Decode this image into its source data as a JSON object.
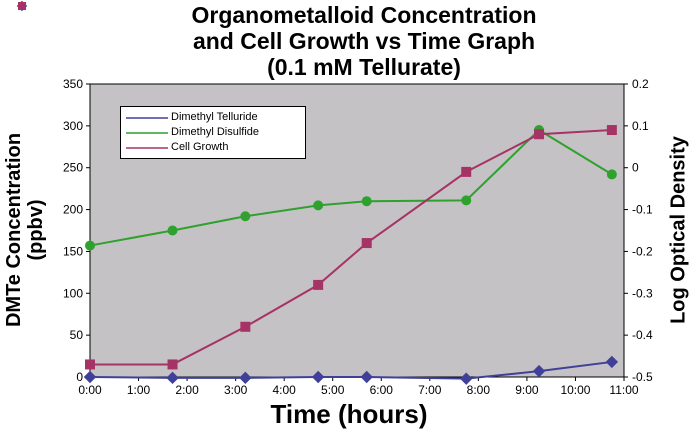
{
  "title": {
    "lines": [
      "Organometalloid Concentration",
      "and Cell Growth vs Time Graph",
      "(0.1 mM Tellurate)"
    ]
  },
  "chart_data": {
    "type": "line",
    "title": "Organometalloid Concentration and Cell Growth vs Time Graph (0.1 mM Tellurate)",
    "x_unit": "hours",
    "x": [
      0,
      1.7,
      3.2,
      4.7,
      5.7,
      7.75,
      9.25,
      10.75
    ],
    "series": [
      {
        "name": "Dimethyl Telluride",
        "axis": "left",
        "marker": "diamond",
        "color": "#40409A",
        "values": [
          0,
          -1,
          -1,
          0,
          0,
          -2,
          7,
          18
        ]
      },
      {
        "name": "Dimethyl Disulfide",
        "axis": "left",
        "marker": "circle",
        "color": "#2EA12E",
        "values": [
          157,
          175,
          192,
          205,
          210,
          211,
          295,
          242
        ]
      },
      {
        "name": "Cell Growth",
        "axis": "right",
        "marker": "square",
        "color": "#A63366",
        "values": [
          -0.47,
          -0.47,
          -0.38,
          -0.28,
          -0.18,
          -0.01,
          0.08,
          0.09
        ]
      }
    ],
    "x_axis": {
      "label": "Time (hours)",
      "range": [
        0,
        11
      ],
      "tick_values": [
        0,
        1,
        2,
        3,
        4,
        5,
        6,
        7,
        8,
        9,
        10,
        11
      ],
      "tick_labels": [
        "0:00",
        "1:00",
        "2:00",
        "3:00",
        "4:00",
        "5:00",
        "6:00",
        "7:00",
        "8:00",
        "9:00",
        "10:00",
        "11:00"
      ]
    },
    "y_left": {
      "label": "DMTe Concentration (ppbv)",
      "label_lines": [
        "DMTe Concentration",
        "(ppbv)"
      ],
      "range": [
        0,
        350
      ],
      "tick_values": [
        0,
        50,
        100,
        150,
        200,
        250,
        300,
        350
      ],
      "tick_labels": [
        "0",
        "50",
        "100",
        "150",
        "200",
        "250",
        "300",
        "350"
      ]
    },
    "y_right": {
      "label": "Log Optical Density",
      "range": [
        -0.5,
        0.2
      ],
      "tick_values": [
        0.2,
        0.1,
        0,
        -0.1,
        -0.2,
        -0.3,
        -0.4,
        -0.5
      ],
      "tick_labels": [
        "0.2",
        "0.1",
        "0",
        "-0.1",
        "-0.2",
        "-0.3",
        "-0.4",
        "-0.5"
      ]
    },
    "legend": {
      "position": "inside-top-left",
      "entries": [
        "Dimethyl Telluride",
        "Dimethyl Disulfide",
        "Cell Growth"
      ]
    },
    "grid": false,
    "plot_bg": "#C5C2C5",
    "axis_color": "#000000"
  }
}
